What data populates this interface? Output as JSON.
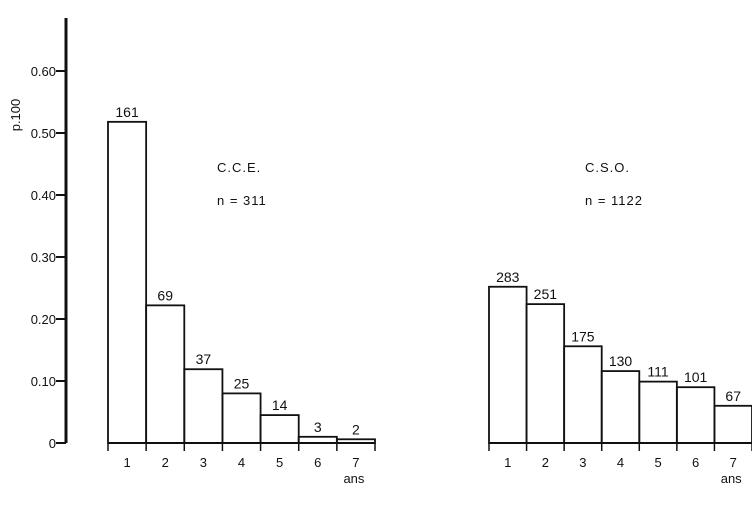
{
  "chart_data": [
    {
      "type": "bar",
      "title": "",
      "annotation_name": "C.C.E.",
      "annotation_n": "n = 311",
      "ylabel": "p.100",
      "xlabel": "ans",
      "ylim": [
        0,
        0.6
      ],
      "yticks": [
        "0.60",
        "0.50",
        "0.40",
        "0.30",
        "0.20",
        "0.10",
        "0"
      ],
      "yticks_values": [
        0.6,
        0.5,
        0.4,
        0.3,
        0.2,
        0.1,
        0
      ],
      "categories": [
        "1",
        "2",
        "3",
        "4",
        "5",
        "6",
        "7"
      ],
      "values": [
        0.518,
        0.222,
        0.119,
        0.08,
        0.045,
        0.01,
        0.006
      ],
      "data_labels": [
        "161",
        "69",
        "37",
        "25",
        "14",
        "3",
        "2"
      ],
      "color": "#111111"
    },
    {
      "type": "bar",
      "title": "",
      "annotation_name": "C.S.O.",
      "annotation_n": "n = 1122",
      "xlabel": "ans",
      "ylim": [
        0,
        0.6
      ],
      "categories": [
        "1",
        "2",
        "3",
        "4",
        "5",
        "6",
        "7"
      ],
      "values": [
        0.252,
        0.224,
        0.156,
        0.116,
        0.099,
        0.09,
        0.06
      ],
      "data_labels": [
        "283",
        "251",
        "175",
        "130",
        "111",
        "101",
        "67"
      ],
      "color": "#111111"
    }
  ]
}
